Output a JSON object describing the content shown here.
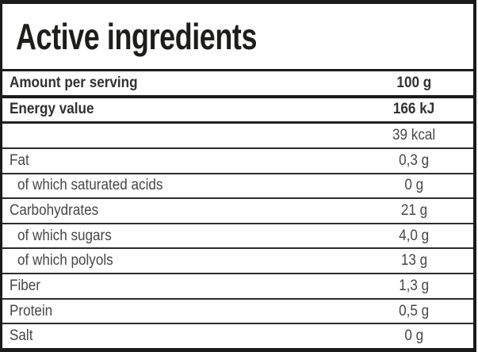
{
  "colors": {
    "background": "#ffffff",
    "border": "#1b1b1b",
    "divider": "#2c2c2c",
    "title_text": "#1d1d1b",
    "row_text": "#474747",
    "bold_row_text": "#313131"
  },
  "table": {
    "title": "Active ingredients",
    "rows": [
      {
        "label": "Amount per serving",
        "value": "100 g",
        "bold": true,
        "indent": false,
        "divider": "thick"
      },
      {
        "label": "Energy value",
        "value": "166 kJ",
        "bold": true,
        "indent": false,
        "divider": "medium"
      },
      {
        "label": "",
        "value": "39 kcal",
        "bold": false,
        "indent": false,
        "divider": "thin"
      },
      {
        "label": "Fat",
        "value": "0,3 g",
        "bold": false,
        "indent": false,
        "divider": "thin"
      },
      {
        "label": "of which saturated acids",
        "value": "0 g",
        "bold": false,
        "indent": true,
        "divider": "thin"
      },
      {
        "label": "Carbohydrates",
        "value": "21 g",
        "bold": false,
        "indent": false,
        "divider": "thin"
      },
      {
        "label": "of which sugars",
        "value": "4,0 g",
        "bold": false,
        "indent": true,
        "divider": "thin"
      },
      {
        "label": "of which polyols",
        "value": "13 g",
        "bold": false,
        "indent": true,
        "divider": "thin"
      },
      {
        "label": "Fiber",
        "value": "1,3 g",
        "bold": false,
        "indent": false,
        "divider": "thin"
      },
      {
        "label": "Protein",
        "value": "0,5 g",
        "bold": false,
        "indent": false,
        "divider": "thin"
      },
      {
        "label": "Salt",
        "value": "0 g",
        "bold": false,
        "indent": false,
        "divider": "none"
      }
    ]
  }
}
